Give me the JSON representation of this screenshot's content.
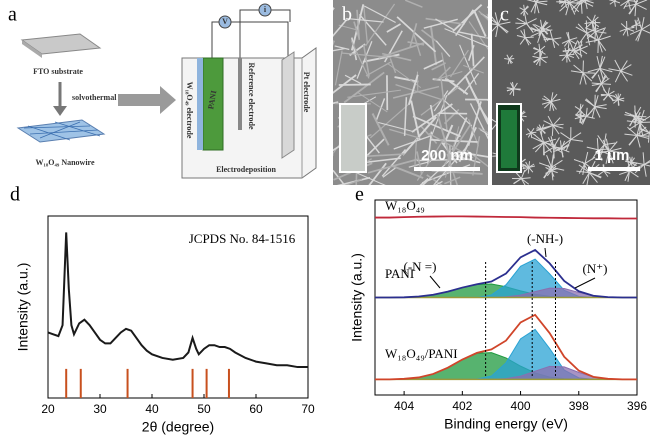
{
  "panels": {
    "a": {
      "label": "a",
      "fto": "FTO substrate",
      "step": "solvothermal",
      "nanowire": "W₁₈O₄₉ Nanowire",
      "voltmeter": "V",
      "ammeter": "i",
      "working": "W₁₈O₄₉ electrode",
      "pani": "PANI",
      "reference": "Reference electrode",
      "counter": "Pt electrode",
      "process": "Electrodeposition"
    },
    "b": {
      "label": "b",
      "scale_bar": "200 nm"
    },
    "c": {
      "label": "c",
      "scale_bar": "1 μm"
    }
  },
  "chart_data": [
    {
      "type": "line",
      "panel_label": "d",
      "xlabel": "2θ (degree)",
      "ylabel": "Intensity (a.u.)",
      "annotation": "JCPDS No. 84-1516",
      "x": [
        20,
        21,
        22,
        22.8,
        23.5,
        24,
        24.5,
        25,
        26,
        27,
        28,
        29,
        30,
        31,
        32,
        33,
        34,
        35,
        36,
        37,
        38,
        39,
        40,
        42,
        44,
        46,
        47,
        47.8,
        48.5,
        49,
        50,
        51,
        52,
        53,
        54,
        55,
        56,
        58,
        60,
        62,
        64,
        66,
        68,
        70
      ],
      "values": [
        36,
        35,
        34,
        40,
        91,
        60,
        40,
        35,
        41,
        43,
        40,
        36,
        32,
        30,
        30,
        33,
        36,
        38,
        37,
        33,
        29,
        26,
        24,
        22,
        21,
        22,
        25,
        33,
        27,
        24,
        27,
        29,
        29,
        28,
        28,
        27,
        25,
        22,
        20,
        19,
        18,
        18,
        17,
        17
      ],
      "color": "#1a1a1a",
      "reference_x": [
        23.5,
        26.3,
        35.3,
        47.8,
        50.5,
        54.8
      ],
      "reference_values": [
        16,
        16,
        16,
        16,
        16,
        16
      ],
      "reference_color": "#c8501e",
      "xlim": [
        20,
        70
      ],
      "xticks": [
        20,
        30,
        40,
        50,
        60,
        70
      ],
      "ylim": [
        0,
        100
      ]
    },
    {
      "type": "xps",
      "panel_label": "e",
      "xlabel": "Binding energy (eV)",
      "ylabel": "Intensity (a.u.)",
      "x": [
        405,
        404.5,
        404,
        403.5,
        403,
        402.5,
        402,
        401.5,
        401,
        400.5,
        400,
        399.5,
        399,
        398.5,
        398,
        397.5,
        397,
        396.5,
        396
      ],
      "xlim": [
        405,
        396
      ],
      "xticks": [
        404,
        402,
        400,
        398,
        396
      ],
      "ylim": [
        0,
        100
      ],
      "guides": [
        401.2,
        399.6,
        398.8
      ],
      "annotations": [
        "(-N =)",
        "(-NH-)",
        "(N⁺)"
      ],
      "baseline_color": "#9a9a3a",
      "spectra": [
        {
          "name": "W₁₈O₄₉",
          "color": "#c0283a",
          "values": [
            91,
            91,
            91.2,
            91.4,
            91.5,
            91.6,
            91.6,
            91.5,
            91.4,
            91.3,
            91.2,
            91,
            90.9,
            90.8,
            90.7,
            90.6,
            90.6,
            90.5,
            90.5
          ]
        },
        {
          "name": "PANI",
          "color": "#2b2f8f",
          "baseline": 50,
          "values": [
            50,
            50,
            50.1,
            50.5,
            51.4,
            53,
            55.1,
            56.8,
            58.2,
            62.3,
            70.6,
            74.4,
            67.5,
            58.5,
            53.2,
            50.9,
            50.2,
            50,
            50
          ],
          "components": [
            {
              "color": "#1f9a3f",
              "values": [
                0,
                0,
                0.1,
                0.5,
                1.4,
                3,
                5.1,
                6.7,
                6.9,
                5.5,
                3.4,
                1.7,
                0.6,
                0.2,
                0,
                0,
                0,
                0,
                0
              ]
            },
            {
              "color": "#2aa3d4",
              "values": [
                0,
                0,
                0,
                0,
                0,
                0,
                0,
                0.1,
                1.3,
                6.5,
                16,
                19.7,
                12.1,
                3.7,
                0.6,
                0,
                0,
                0,
                0
              ]
            },
            {
              "color": "#8a6fb0",
              "values": [
                0,
                0,
                0,
                0,
                0,
                0,
                0,
                0,
                0,
                0.3,
                1.2,
                3,
                4.8,
                4.6,
                2.6,
                0.9,
                0.2,
                0,
                0
              ]
            }
          ]
        },
        {
          "name": "W₁₈O₄₉/PANI",
          "color": "#d0452a",
          "baseline": 8,
          "values": [
            8,
            8,
            8.3,
            9,
            10.8,
            14,
            18.2,
            21.6,
            23.4,
            27.9,
            37.2,
            41.1,
            31.7,
            19.6,
            12.5,
            9.3,
            8.3,
            8,
            8
          ],
          "components": [
            {
              "color": "#1f9a3f",
              "values": [
                0,
                0,
                0.3,
                1,
                2.8,
                6,
                10.2,
                13.4,
                13.7,
                11,
                6.8,
                3.3,
                1.2,
                0.4,
                0.1,
                0,
                0,
                0,
                0
              ]
            },
            {
              "color": "#2aa3d4",
              "values": [
                0,
                0,
                0,
                0,
                0,
                0,
                0,
                0.2,
                1.7,
                8.5,
                20.8,
                25.6,
                15.8,
                4.8,
                0.8,
                0.1,
                0,
                0,
                0
              ]
            },
            {
              "color": "#8a6fb0",
              "values": [
                0,
                0,
                0,
                0,
                0,
                0,
                0,
                0,
                0,
                0.4,
                1.6,
                4.2,
                6.7,
                6.4,
                3.6,
                1.2,
                0.3,
                0,
                0
              ]
            }
          ]
        }
      ]
    }
  ]
}
